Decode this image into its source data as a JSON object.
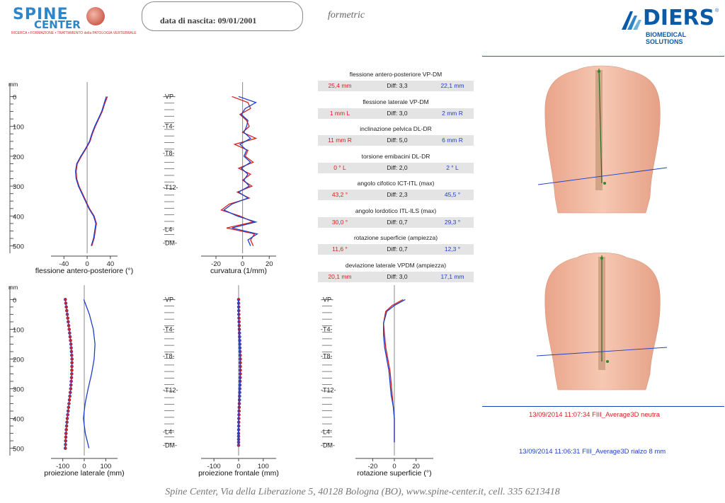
{
  "header": {
    "logo_left": {
      "word1": "SPINE",
      "word2": "CENTER",
      "tagline": "RICERCA • FORMAZIONE • TRATTAMENTO della PATOLOGIA VERTEBRALE"
    },
    "dob_label": "data di nascita: 09/01/2001",
    "formetric": "formetric",
    "logo_right": {
      "word": "DIERS",
      "sub": "BIOMEDICAL SOLUTIONS",
      "reg": "®"
    }
  },
  "colors": {
    "red": "#d62020",
    "blue": "#1e3fc8",
    "grey": "#e4e4e4",
    "skin": "#f3b9a0",
    "bone": "#c99a7a"
  },
  "metrics": [
    {
      "title": "flessione antero-posteriore VP-DM",
      "left": "25,4 mm",
      "diff": "Diff: 3,3",
      "right": "22,1 mm"
    },
    {
      "title": "flessione laterale VP-DM",
      "left": "1 mm  L",
      "diff": "Diff: 3,0",
      "right": "2 mm  R"
    },
    {
      "title": "inclinazione pelvica DL-DR",
      "left": "11 mm  R",
      "diff": "Diff: 5,0",
      "right": "6 mm  R"
    },
    {
      "title": "torsione emibacini DL-DR",
      "left": "0 °      L",
      "diff": "Diff: 2,0",
      "right": "2 °      L"
    },
    {
      "title": "angolo cifotico ICT-ITL (max)",
      "left": "43,2 °",
      "diff": "Diff: 2,3",
      "right": "45,5 °"
    },
    {
      "title": "angolo lordotico ITL-ILS (max)",
      "left": "30,0 °",
      "diff": "Diff: 0,7",
      "right": "29,3 °"
    },
    {
      "title": "rotazione superficie (ampiezza)",
      "left": "11,6 °",
      "diff": "Diff: 0,7",
      "right": "12,3 °"
    },
    {
      "title": "deviazione laterale VPDM (ampiezza)",
      "left": "20,1 mm",
      "diff": "Diff: 3,0",
      "right": "17,1 mm"
    }
  ],
  "captions": {
    "red": "13/09/2014 11:07:34 FIII_Average3D  neutra",
    "blue": "13/09/2014 11:06:31 FIII_Average3D  rialzo 8 mm"
  },
  "footer": "Spine Center,  Via della Liberazione 5, 40128 Bologna (BO),  www.spine-center.it, cell. 335 6213418",
  "chart_data": [
    {
      "type": "line",
      "xlabel": "flessione antero-posteriore (°)",
      "ylabel": "mm",
      "xticks": [
        "-40",
        "0",
        "40"
      ],
      "xlim": [
        -55,
        45
      ],
      "yticks": [
        "0",
        "100",
        "200",
        "300",
        "400",
        "500"
      ],
      "ylim": [
        -20,
        520
      ],
      "series": [
        {
          "color": "red",
          "y": [
            0,
            25,
            50,
            75,
            100,
            125,
            150,
            175,
            200,
            225,
            250,
            275,
            300,
            325,
            350,
            375,
            400,
            425,
            450,
            475,
            500
          ],
          "x": [
            35,
            30,
            26,
            20,
            14,
            9,
            5,
            -2,
            -10,
            -17,
            -19,
            -18,
            -14,
            -8,
            -2,
            4,
            12,
            16,
            14,
            12,
            8
          ]
        },
        {
          "color": "blue",
          "y": [
            0,
            25,
            50,
            75,
            100,
            125,
            150,
            175,
            200,
            225,
            250,
            275,
            300,
            325,
            350,
            375,
            400,
            425,
            450,
            475,
            500
          ],
          "x": [
            33,
            29,
            25,
            19,
            13,
            8,
            4,
            -3,
            -11,
            -18,
            -20,
            -19,
            -15,
            -9,
            -3,
            3,
            11,
            15,
            13,
            11,
            7
          ]
        }
      ]
    },
    {
      "type": "line",
      "xlabel": "curvatura (1/mm)",
      "xticks": [
        "-20",
        "0",
        "20"
      ],
      "xlim": [
        -28,
        22
      ],
      "levels": [
        "-VP-",
        "-T4-",
        "-T8-",
        "-T12-",
        "-L4-",
        "-DM-"
      ],
      "level_y": [
        0,
        100,
        190,
        305,
        445,
        490
      ],
      "ylim": [
        -20,
        520
      ],
      "series": [
        {
          "color": "red",
          "y": [
            0,
            20,
            40,
            60,
            80,
            100,
            120,
            140,
            160,
            180,
            200,
            220,
            240,
            260,
            280,
            300,
            320,
            340,
            360,
            380,
            400,
            420,
            440,
            460,
            480,
            500
          ],
          "x": [
            -8,
            4,
            6,
            -2,
            3,
            5,
            0,
            10,
            -6,
            4,
            2,
            8,
            -3,
            6,
            0,
            7,
            -4,
            5,
            -10,
            -16,
            -2,
            8,
            -12,
            9,
            6,
            8
          ]
        },
        {
          "color": "blue",
          "y": [
            0,
            20,
            40,
            60,
            80,
            100,
            120,
            140,
            160,
            180,
            200,
            220,
            240,
            260,
            280,
            300,
            320,
            340,
            360,
            380,
            400,
            420,
            440,
            460,
            480,
            500
          ],
          "x": [
            -3,
            10,
            2,
            -1,
            4,
            3,
            1,
            6,
            -2,
            3,
            1,
            6,
            -1,
            4,
            1,
            5,
            -3,
            4,
            -8,
            -14,
            -4,
            10,
            -8,
            11,
            4,
            6
          ]
        }
      ]
    },
    {
      "type": "line",
      "xlabel": "proiezione laterale (mm)",
      "ylabel": "mm",
      "xticks": [
        "-100",
        "0",
        "100"
      ],
      "xlim": [
        -135,
        135
      ],
      "yticks": [
        "0",
        "100",
        "200",
        "300",
        "400",
        "500"
      ],
      "ylim": [
        -20,
        520
      ],
      "series": [
        {
          "color": "red",
          "y": [
            0,
            50,
            100,
            150,
            200,
            250,
            300,
            350,
            400,
            450,
            500
          ],
          "x": [
            -88,
            -79,
            -70,
            -62,
            -57,
            -58,
            -63,
            -71,
            -79,
            -85,
            -88
          ],
          "markers": true
        },
        {
          "color": "blue",
          "y": [
            0,
            50,
            100,
            150,
            200,
            250,
            300,
            350,
            400,
            450,
            500
          ],
          "x": [
            -2,
            24,
            42,
            50,
            46,
            34,
            18,
            4,
            -4,
            5,
            22
          ]
        }
      ]
    },
    {
      "type": "line",
      "xlabel": "proiezione frontale (mm)",
      "xticks": [
        "-100",
        "0",
        "100"
      ],
      "xlim": [
        -135,
        135
      ],
      "levels": [
        "-VP-",
        "-T4-",
        "-T8-",
        "-T12-",
        "-L4-",
        "-DM-"
      ],
      "level_y": [
        0,
        100,
        190,
        305,
        445,
        490
      ],
      "ylim": [
        -20,
        520
      ],
      "series": [
        {
          "color": "red",
          "y": [
            0,
            50,
            100,
            150,
            200,
            250,
            300,
            350,
            400,
            450,
            490
          ],
          "x": [
            0,
            1,
            3,
            5,
            7,
            7,
            5,
            3,
            1,
            0,
            0
          ],
          "markers": true
        },
        {
          "color": "blue",
          "y": [
            0,
            50,
            100,
            150,
            200,
            250,
            300,
            350,
            400,
            450,
            490
          ],
          "x": [
            -1,
            0,
            2,
            4,
            6,
            6,
            4,
            2,
            0,
            -1,
            0
          ]
        }
      ]
    },
    {
      "type": "line",
      "xlabel": "rotazione superficie (°)",
      "xticks": [
        "-20",
        "0",
        "20"
      ],
      "xlim": [
        -32,
        32
      ],
      "levels": [
        "-VP-",
        "-T4-",
        "-T8-",
        "-T12-",
        "-L4-",
        "-DM-"
      ],
      "level_y": [
        0,
        100,
        190,
        305,
        445,
        490
      ],
      "ylim": [
        -20,
        520
      ],
      "series": [
        {
          "color": "red",
          "y": [
            0,
            20,
            40,
            80,
            120,
            160,
            200,
            240,
            280,
            320,
            360,
            400,
            440,
            480
          ],
          "x": [
            8,
            -2,
            -8,
            -10,
            -9,
            -8,
            -6,
            -4,
            -3,
            -2,
            -1,
            0,
            0,
            0
          ]
        },
        {
          "color": "blue",
          "y": [
            0,
            20,
            40,
            80,
            120,
            160,
            200,
            240,
            280,
            320,
            360,
            400,
            440,
            480
          ],
          "x": [
            10,
            0,
            -7,
            -10,
            -10,
            -9,
            -7,
            -5,
            -4,
            -3,
            -1,
            0,
            0,
            0
          ]
        }
      ]
    }
  ]
}
